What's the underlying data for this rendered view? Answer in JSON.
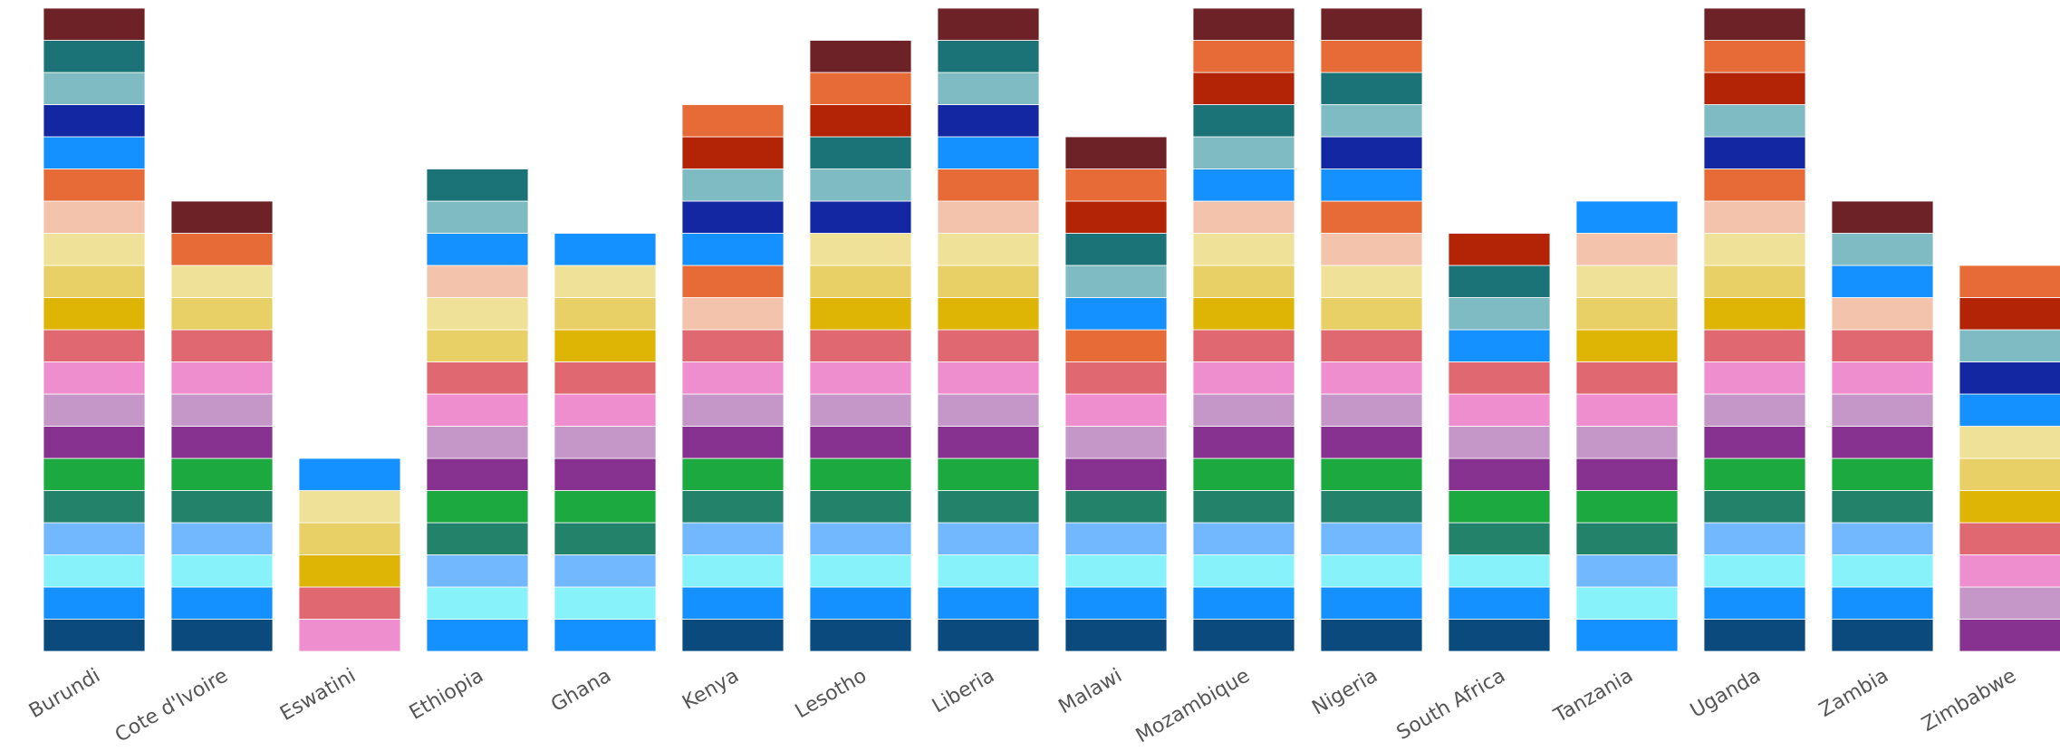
{
  "chart_data": {
    "type": "bar",
    "stacked": true,
    "title": "",
    "xlabel": "",
    "ylabel": "",
    "ylim": [
      0,
      20
    ],
    "grid": false,
    "legend": "none",
    "categories": [
      "Burundi",
      "Cote d'Ivoire",
      "Eswatini",
      "Ethiopia",
      "Ghana",
      "Kenya",
      "Lesotho",
      "Liberia",
      "Malawi",
      "Mozambique",
      "Nigeria",
      "South Africa",
      "Tanzania",
      "Uganda",
      "Zambia",
      "Zimbabwe"
    ],
    "values": [
      20,
      14,
      6,
      15,
      13,
      17,
      19,
      20,
      16,
      20,
      20,
      13,
      14,
      20,
      14,
      12
    ],
    "segment_colors": [
      [
        "#0b4a7d",
        "#1590ff",
        "#88f2fb",
        "#72b8ff",
        "#22826a",
        "#1caa40",
        "#873290",
        "#c596c8",
        "#ef8ece",
        "#e06870",
        "#deb405",
        "#e8d066",
        "#efe197",
        "#f4c3ac",
        "#e66b36",
        "#1590ff",
        "#1427a3",
        "#7fbbc3",
        "#1b7378",
        "#6d2228"
      ],
      [
        "#0b4a7d",
        "#1590ff",
        "#88f2fb",
        "#72b8ff",
        "#22826a",
        "#1caa40",
        "#873290",
        "#c596c8",
        "#ef8ece",
        "#e06870",
        "#e8d066",
        "#efe197",
        "#e66b36",
        "#6d2228"
      ],
      [
        "#ef8ece",
        "#e06870",
        "#deb405",
        "#e8d066",
        "#efe197",
        "#1590ff"
      ],
      [
        "#1590ff",
        "#88f2fb",
        "#72b8ff",
        "#22826a",
        "#1caa40",
        "#873290",
        "#c596c8",
        "#ef8ece",
        "#e06870",
        "#e8d066",
        "#efe197",
        "#f4c3ac",
        "#1590ff",
        "#7fbbc3",
        "#1b7378"
      ],
      [
        "#1590ff",
        "#88f2fb",
        "#72b8ff",
        "#22826a",
        "#1caa40",
        "#873290",
        "#c596c8",
        "#ef8ece",
        "#e06870",
        "#deb405",
        "#e8d066",
        "#efe197",
        "#1590ff"
      ],
      [
        "#0b4a7d",
        "#1590ff",
        "#88f2fb",
        "#72b8ff",
        "#22826a",
        "#1caa40",
        "#873290",
        "#c596c8",
        "#ef8ece",
        "#e06870",
        "#f4c3ac",
        "#e66b36",
        "#1590ff",
        "#1427a3",
        "#7fbbc3",
        "#b32406",
        "#e66b36"
      ],
      [
        "#0b4a7d",
        "#1590ff",
        "#88f2fb",
        "#72b8ff",
        "#22826a",
        "#1caa40",
        "#873290",
        "#c596c8",
        "#ef8ece",
        "#e06870",
        "#deb405",
        "#e8d066",
        "#efe197",
        "#1427a3",
        "#7fbbc3",
        "#1b7378",
        "#b32406",
        "#e66b36",
        "#6d2228"
      ],
      [
        "#0b4a7d",
        "#1590ff",
        "#88f2fb",
        "#72b8ff",
        "#22826a",
        "#1caa40",
        "#873290",
        "#c596c8",
        "#ef8ece",
        "#e06870",
        "#deb405",
        "#e8d066",
        "#efe197",
        "#f4c3ac",
        "#e66b36",
        "#1590ff",
        "#1427a3",
        "#7fbbc3",
        "#1b7378",
        "#6d2228"
      ],
      [
        "#0b4a7d",
        "#1590ff",
        "#88f2fb",
        "#72b8ff",
        "#22826a",
        "#873290",
        "#c596c8",
        "#ef8ece",
        "#e06870",
        "#e66b36",
        "#1590ff",
        "#7fbbc3",
        "#1b7378",
        "#b32406",
        "#e66b36",
        "#6d2228"
      ],
      [
        "#0b4a7d",
        "#1590ff",
        "#88f2fb",
        "#72b8ff",
        "#22826a",
        "#1caa40",
        "#873290",
        "#c596c8",
        "#ef8ece",
        "#e06870",
        "#deb405",
        "#e8d066",
        "#efe197",
        "#f4c3ac",
        "#1590ff",
        "#7fbbc3",
        "#1b7378",
        "#b32406",
        "#e66b36",
        "#6d2228"
      ],
      [
        "#0b4a7d",
        "#1590ff",
        "#88f2fb",
        "#72b8ff",
        "#22826a",
        "#1caa40",
        "#873290",
        "#c596c8",
        "#ef8ece",
        "#e06870",
        "#e8d066",
        "#efe197",
        "#f4c3ac",
        "#e66b36",
        "#1590ff",
        "#1427a3",
        "#7fbbc3",
        "#1b7378",
        "#e66b36",
        "#6d2228"
      ],
      [
        "#0b4a7d",
        "#1590ff",
        "#88f2fb",
        "#22826a",
        "#1caa40",
        "#873290",
        "#c596c8",
        "#ef8ece",
        "#e06870",
        "#1590ff",
        "#7fbbc3",
        "#1b7378",
        "#b32406"
      ],
      [
        "#1590ff",
        "#88f2fb",
        "#72b8ff",
        "#22826a",
        "#1caa40",
        "#873290",
        "#c596c8",
        "#ef8ece",
        "#e06870",
        "#deb405",
        "#e8d066",
        "#efe197",
        "#f4c3ac",
        "#1590ff"
      ],
      [
        "#0b4a7d",
        "#1590ff",
        "#88f2fb",
        "#72b8ff",
        "#22826a",
        "#1caa40",
        "#873290",
        "#c596c8",
        "#ef8ece",
        "#e06870",
        "#deb405",
        "#e8d066",
        "#efe197",
        "#f4c3ac",
        "#e66b36",
        "#1427a3",
        "#7fbbc3",
        "#b32406",
        "#e66b36",
        "#6d2228"
      ],
      [
        "#0b4a7d",
        "#1590ff",
        "#88f2fb",
        "#72b8ff",
        "#22826a",
        "#1caa40",
        "#873290",
        "#c596c8",
        "#ef8ece",
        "#e06870",
        "#f4c3ac",
        "#1590ff",
        "#7fbbc3",
        "#6d2228"
      ],
      [
        "#873290",
        "#c596c8",
        "#ef8ece",
        "#e06870",
        "#deb405",
        "#e8d066",
        "#efe197",
        "#1590ff",
        "#1427a3",
        "#7fbbc3",
        "#b32406",
        "#e66b36"
      ]
    ]
  }
}
